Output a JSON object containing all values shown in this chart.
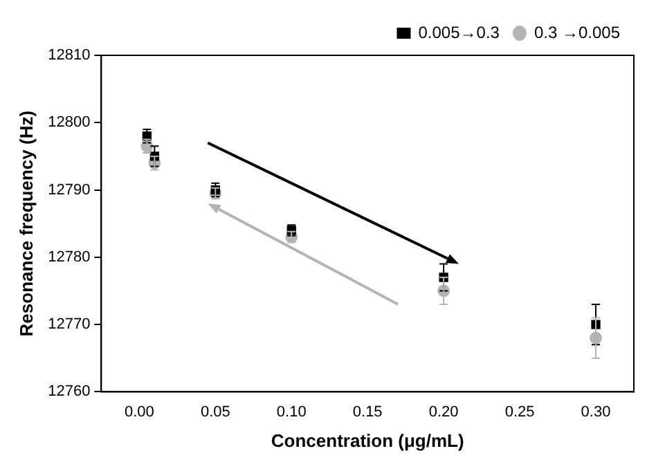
{
  "chart_data": {
    "type": "scatter",
    "xlabel": "Concentration (μg/mL)",
    "ylabel": "Resonance frequency (Hz)",
    "xlim": [
      -0.025,
      0.325
    ],
    "xticks": [
      {
        "value": 0,
        "label": "0.00"
      },
      0.05,
      {
        "value": 0.1,
        "label": "0.10"
      },
      0.15,
      {
        "value": 0.2,
        "label": "0.20"
      },
      0.25,
      {
        "value": 0.3,
        "label": "0.30"
      }
    ],
    "ylim": [
      12760,
      12810
    ],
    "yticks": [
      12760,
      12770,
      12780,
      12790,
      12800,
      12810
    ],
    "grid": false,
    "legend": "top right",
    "series": [
      {
        "name": "0.005→0.3",
        "color": "#000000",
        "marker": "square",
        "x": [
          0.005,
          0.01,
          0.05,
          0.1,
          0.2,
          0.3
        ],
        "values": [
          12798,
          12795,
          12790,
          12784,
          12777,
          12770
        ],
        "errors": [
          1,
          1.5,
          1,
          0.8,
          2,
          3
        ]
      },
      {
        "name": "0.3 →0.005",
        "color": "#b4b4b4",
        "marker": "circle",
        "x": [
          0.005,
          0.01,
          0.05,
          0.1,
          0.2,
          0.3
        ],
        "values": [
          12796.5,
          12794,
          12789.5,
          12783,
          12775,
          12768
        ],
        "errors": [
          1,
          1,
          0.8,
          0.8,
          2,
          3
        ]
      }
    ]
  }
}
